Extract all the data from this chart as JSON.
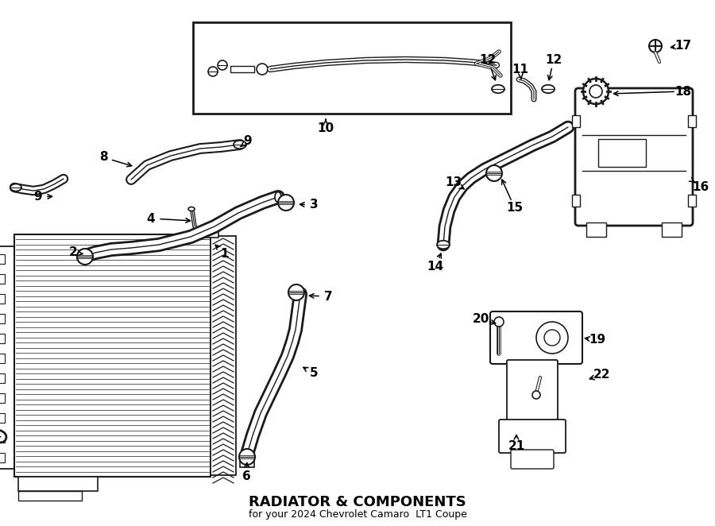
{
  "bg_color": "#ffffff",
  "line_color": "#1a1a1a",
  "title": "RADIATOR & COMPONENTS",
  "subtitle": "for your 2024 Chevrolet Camaro  LT1 Coupe",
  "figsize": [
    9.0,
    6.62
  ],
  "dpi": 100
}
